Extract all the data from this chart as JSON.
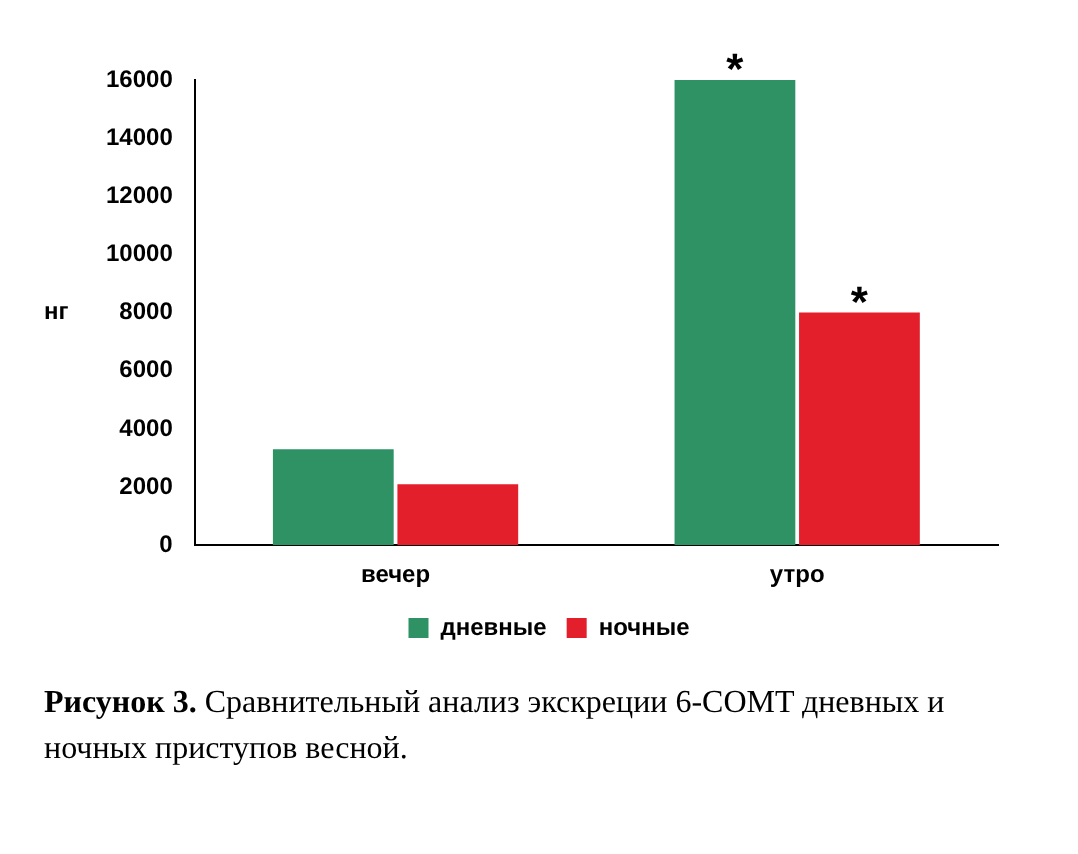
{
  "chart_data": {
    "type": "bar",
    "ylabel": "нг",
    "categories": [
      "вечер",
      "утро"
    ],
    "series": [
      {
        "name": "дневные",
        "color": "#2e9264",
        "values": [
          3300,
          16000
        ]
      },
      {
        "name": "ночные",
        "color": "#e21f2a",
        "values": [
          2100,
          8000
        ]
      }
    ],
    "ylim": [
      0,
      16000
    ],
    "yticks": [
      0,
      2000,
      4000,
      6000,
      8000,
      10000,
      12000,
      14000,
      16000
    ],
    "grid": false,
    "legend": "bottom",
    "annotations": [
      {
        "text": "*",
        "x": "утро",
        "y": 16000
      },
      {
        "text": "*",
        "x": "утро",
        "y": 8000
      },
      "Рисунок 3. Сравнительный анализ экскреции 6-COMT дневных и ночных приступов весной."
    ]
  }
}
